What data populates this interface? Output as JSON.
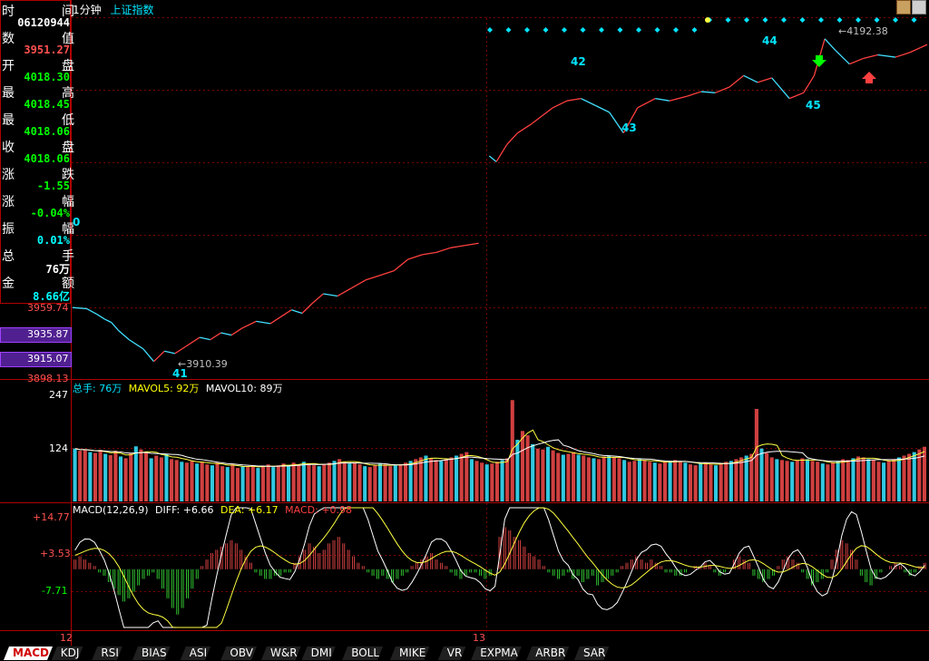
{
  "header": {
    "period": "1分钟",
    "instrument": "上证指数"
  },
  "info_panel": {
    "rows": [
      {
        "label": "时间",
        "value": "06120944",
        "value_color": "#ffffff"
      },
      {
        "label": "数值",
        "value": "3951.27",
        "value_color": "#ff5050"
      },
      {
        "label": "开盘",
        "value": "4018.30",
        "value_color": "#00ff00"
      },
      {
        "label": "最高",
        "value": "4018.45",
        "value_color": "#00ff00"
      },
      {
        "label": "最低",
        "value": "4018.06",
        "value_color": "#00ff00"
      },
      {
        "label": "收盘",
        "value": "4018.06",
        "value_color": "#00ff00"
      },
      {
        "label": "涨跌",
        "value": "-1.55",
        "value_color": "#00ff00"
      },
      {
        "label": "涨幅",
        "value": "-0.04%",
        "value_color": "#00ff00"
      },
      {
        "label": "振幅",
        "value": "0.01%",
        "value_color": "#00ffff"
      },
      {
        "label": "总手",
        "value": "76万",
        "value_color": "#ffffff"
      },
      {
        "label": "金额",
        "value": "8.66亿",
        "value_color": "#00ffff"
      }
    ]
  },
  "price_axis": {
    "labels": [
      "3959.74",
      "3935.87",
      "3915.07",
      "3898.13"
    ],
    "highlighted": [
      "3935.87",
      "3915.07"
    ]
  },
  "price_annotations": {
    "low_value": "3910.39",
    "high_value": "4192.38",
    "wave_labels": [
      "0",
      "41",
      "42",
      "43",
      "44",
      "45"
    ]
  },
  "volume_panel": {
    "legend_total": "总手: 76万",
    "legend_mavol5": "MAVOL5: 92万",
    "legend_mavol10": "MAVOL10: 89万",
    "axis_labels": [
      "247",
      "124"
    ]
  },
  "macd_panel": {
    "legend_title": "MACD(12,26,9)",
    "legend_diff": "DIFF: +6.66",
    "legend_dea": "DEA: +6.17",
    "legend_macd": "MACD: +0.98",
    "axis_labels": [
      "+14.77",
      "+3.53",
      "-7.71"
    ]
  },
  "x_axis": {
    "labels": [
      "12",
      "13"
    ]
  },
  "indicator_tabs": [
    "MACD",
    "KDJ",
    "RSI",
    "BIAS",
    "ASI",
    "OBV",
    "W&R",
    "DMI",
    "BOLL",
    "MIKE",
    "VR",
    "EXPMA",
    "ARBR",
    "SAR"
  ],
  "active_tab": "MACD",
  "chart_data": {
    "type": "line",
    "title": "上证指数 1分钟",
    "series": [
      {
        "x": [
          0,
          8,
          14,
          18,
          22,
          26,
          32,
          40,
          46,
          52,
          58,
          64,
          72,
          78,
          84,
          90,
          96,
          104,
          112,
          118,
          124,
          130,
          136,
          142,
          150,
          158,
          166,
          174,
          182,
          190,
          198,
          206,
          214,
          222,
          230
        ],
        "values": [
          3958,
          3957,
          3952,
          3948,
          3945,
          3938,
          3930,
          3922,
          3911,
          3920,
          3918,
          3924,
          3932,
          3930,
          3936,
          3934,
          3940,
          3946,
          3944,
          3950,
          3956,
          3953,
          3962,
          3970,
          3968,
          3975,
          3982,
          3986,
          3990,
          4000,
          4004,
          4006,
          4010,
          4012,
          4014
        ]
      },
      {
        "x": [
          236,
          240,
          246,
          252,
          260,
          266,
          272,
          280,
          288,
          296,
          304,
          312,
          320,
          330,
          338,
          348,
          356,
          364,
          372,
          380,
          388,
          396,
          406,
          414,
          420,
          426,
          432,
          440,
          448,
          456,
          466,
          474,
          484
        ],
        "values": [
          4090,
          4085,
          4100,
          4110,
          4118,
          4125,
          4132,
          4138,
          4140,
          4134,
          4128,
          4110,
          4132,
          4140,
          4138,
          4142,
          4146,
          4145,
          4150,
          4160,
          4154,
          4158,
          4140,
          4145,
          4160,
          4192,
          4182,
          4170,
          4175,
          4178,
          4176,
          4180,
          4187
        ]
      }
    ],
    "xlim": [
      0,
      484
    ],
    "ylim": [
      3898.13,
      4210
    ],
    "volume": {
      "ylim": [
        0,
        247
      ],
      "values": [
        120,
        115,
        118,
        112,
        110,
        117,
        108,
        105,
        115,
        102,
        98,
        110,
        125,
        118,
        112,
        98,
        104,
        100,
        108,
        96,
        94,
        90,
        88,
        92,
        86,
        90,
        84,
        82,
        88,
        80,
        78,
        84,
        76,
        80,
        78,
        82,
        76,
        80,
        84,
        78,
        82,
        86,
        80,
        88,
        84,
        90,
        86,
        82,
        80,
        84,
        88,
        92,
        96,
        90,
        86,
        88,
        84,
        80,
        78,
        82,
        86,
        84,
        80,
        82,
        84,
        88,
        92,
        96,
        100,
        104,
        98,
        94,
        92,
        96,
        100,
        104,
        108,
        112,
        96,
        92,
        88,
        84,
        86,
        90,
        94,
        98,
        230,
        140,
        160,
        150,
        130,
        120,
        118,
        124,
        116,
        110,
        106,
        108,
        112,
        106,
        104,
        100,
        98,
        96,
        102,
        104,
        100,
        98,
        94,
        90,
        92,
        96,
        94,
        90,
        88,
        86,
        90,
        92,
        94,
        90,
        88,
        84,
        82,
        86,
        88,
        84,
        82,
        86,
        90,
        92,
        96,
        100,
        104,
        108,
        210,
        120,
        110,
        100,
        96,
        94,
        92,
        90,
        94,
        98,
        96,
        92,
        90,
        86,
        84,
        88,
        92,
        96,
        94,
        98,
        102,
        100,
        96,
        94,
        90,
        88,
        92,
        96,
        100,
        104,
        108,
        112,
        118,
        124
      ]
    },
    "macd": {
      "ylim": [
        -18,
        19
      ],
      "hist": [
        3,
        4,
        3,
        2,
        1,
        -1,
        -2,
        -4,
        -6,
        -8,
        -10,
        -9,
        -7,
        -5,
        -3,
        -2,
        -1,
        -3,
        -6,
        -9,
        -12,
        -14,
        -12,
        -9,
        -6,
        -3,
        1,
        3,
        5,
        6,
        7,
        8,
        9,
        8,
        6,
        4,
        2,
        -1,
        -2,
        -3,
        -3,
        -2,
        -2,
        -1,
        -1,
        2,
        4,
        6,
        8,
        7,
        5,
        6,
        8,
        9,
        10,
        8,
        6,
        4,
        2,
        1,
        -1,
        -2,
        -3,
        -2,
        -3,
        -4,
        -3,
        -2,
        -1,
        1,
        2,
        3,
        4,
        5,
        3,
        2,
        1,
        -1,
        -2,
        -3,
        -2,
        -1,
        -1,
        -2,
        -3,
        -2,
        0,
        10,
        13,
        12,
        10,
        9,
        7,
        5,
        4,
        3,
        1,
        -1,
        -2,
        -3,
        -2,
        -1,
        -3,
        -2,
        -4,
        -3,
        -2,
        -5,
        -4,
        -3,
        -2,
        -1,
        1,
        2,
        3,
        4,
        3,
        2,
        3,
        2,
        1,
        -1,
        -1,
        -2,
        -2,
        -1,
        0,
        1,
        1,
        2,
        1,
        -1,
        -2,
        -1,
        0,
        3,
        4,
        3,
        2,
        -2,
        -3,
        -4,
        -3,
        -2,
        1,
        3,
        4,
        3,
        2,
        -1,
        -3,
        -5,
        -4,
        -3,
        -1,
        3,
        6,
        9,
        8,
        6,
        3,
        -2,
        -4,
        -5,
        -3,
        -1,
        0,
        1,
        2,
        1,
        -1,
        -2,
        -1,
        1,
        2
      ]
    }
  }
}
